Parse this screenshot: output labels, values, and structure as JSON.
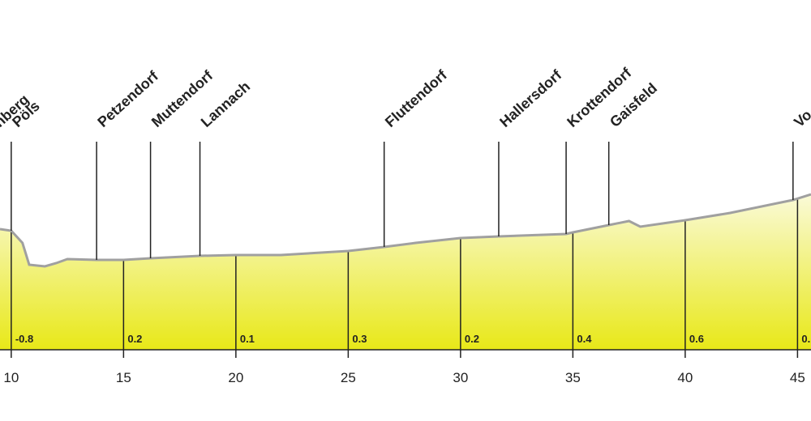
{
  "chart_data": {
    "type": "area",
    "x": [
      9.5,
      10,
      10.5,
      10.8,
      11.5,
      12,
      12.5,
      13.8,
      15,
      16.2,
      18.4,
      20,
      22,
      25,
      26.6,
      28,
      30,
      31.7,
      34.7,
      35,
      36.6,
      37.5,
      38,
      40,
      42,
      44.8,
      45.6
    ],
    "values": [
      374.5,
      373.5,
      366,
      352.5,
      351.5,
      353.5,
      356,
      355.5,
      355.5,
      356.5,
      358,
      358.5,
      358.5,
      361,
      363.5,
      366,
      369,
      370,
      371.5,
      372.5,
      377,
      379.5,
      376,
      380,
      384.5,
      392.5,
      396
    ],
    "xlim": [
      9.5,
      45.6
    ],
    "ylim": [
      300,
      516
    ],
    "xticks": [
      10,
      15,
      20,
      25,
      30,
      35,
      40,
      45
    ],
    "gradient_labels": [
      "-0.8",
      "0.2",
      "0.1",
      "0.3",
      "0.2",
      "0.4",
      "0.6",
      "0."
    ],
    "places": [
      {
        "name": "nberg",
        "x": 9.2
      },
      {
        "name": "Pöls",
        "x": 10
      },
      {
        "name": "Petzendorf",
        "x": 13.8
      },
      {
        "name": "Muttendorf",
        "x": 16.2
      },
      {
        "name": "Lannach",
        "x": 18.4
      },
      {
        "name": "Fluttendorf",
        "x": 26.6
      },
      {
        "name": "Hallersdorf",
        "x": 31.7
      },
      {
        "name": "Krottendorf",
        "x": 34.7
      },
      {
        "name": "Gaisfeld",
        "x": 36.6
      },
      {
        "name": "Vo",
        "x": 44.8
      }
    ],
    "line_color": "#a0a0a0",
    "fill_top": "#fafad8",
    "fill_bottom": "#e8e818"
  }
}
